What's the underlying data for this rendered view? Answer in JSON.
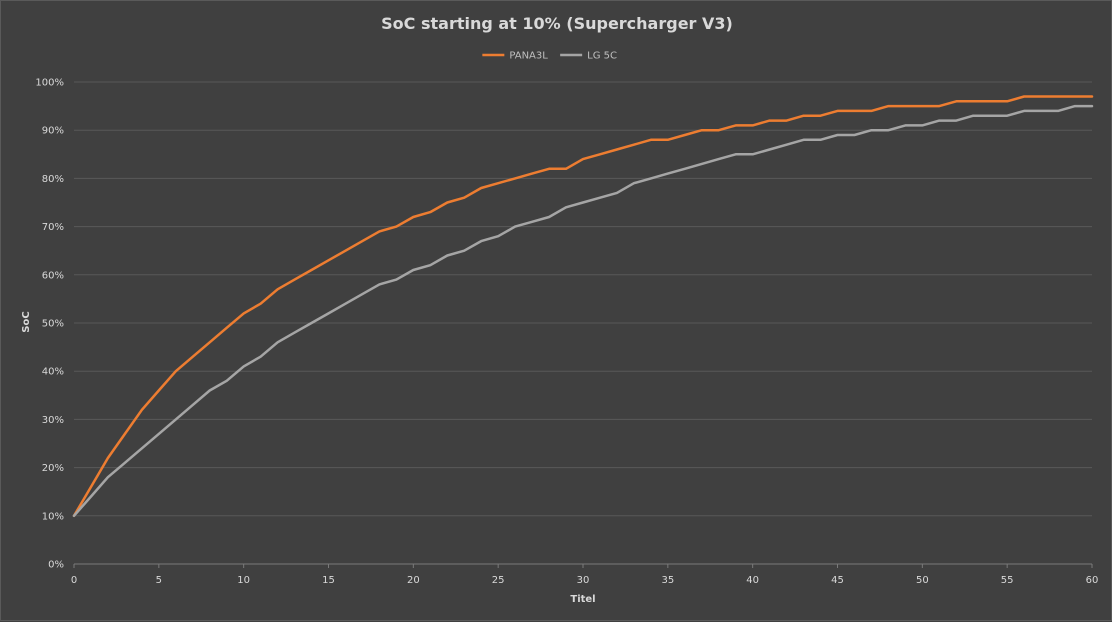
{
  "chart_data": {
    "type": "line",
    "title": "SoC starting at 10% (Supercharger V3)",
    "xlabel": "Titel",
    "ylabel": "SoC",
    "xlim": [
      0,
      60
    ],
    "ylim": [
      0,
      100
    ],
    "x_ticks": [
      "0",
      "5",
      "10",
      "15",
      "20",
      "25",
      "30",
      "35",
      "40",
      "45",
      "50",
      "55",
      "60"
    ],
    "y_ticks": [
      "0%",
      "10%",
      "20%",
      "30%",
      "40%",
      "50%",
      "60%",
      "70%",
      "80%",
      "90%",
      "100%"
    ],
    "grid": true,
    "legend_position": "top-center",
    "x": [
      0,
      1,
      2,
      3,
      4,
      5,
      6,
      7,
      8,
      9,
      10,
      11,
      12,
      13,
      14,
      15,
      16,
      17,
      18,
      19,
      20,
      21,
      22,
      23,
      24,
      25,
      26,
      27,
      28,
      29,
      30,
      31,
      32,
      33,
      34,
      35,
      36,
      37,
      38,
      39,
      40,
      41,
      42,
      43,
      44,
      45,
      46,
      47,
      48,
      49,
      50,
      51,
      52,
      53,
      54,
      55,
      56,
      57,
      58,
      59,
      60
    ],
    "series": [
      {
        "name": "PANA3L",
        "color": "#ed7d31",
        "values": [
          10,
          16,
          22,
          27,
          32,
          36,
          40,
          43,
          46,
          49,
          52,
          54,
          57,
          59,
          61,
          63,
          65,
          67,
          69,
          70,
          72,
          73,
          75,
          76,
          78,
          79,
          80,
          81,
          82,
          82,
          84,
          85,
          86,
          87,
          88,
          88,
          89,
          90,
          90,
          91,
          91,
          92,
          92,
          93,
          93,
          94,
          94,
          94,
          95,
          95,
          95,
          95,
          96,
          96,
          96,
          96,
          97,
          97,
          97,
          97,
          97
        ]
      },
      {
        "name": "LG 5C",
        "color": "#a5a5a5",
        "values": [
          10,
          14,
          18,
          21,
          24,
          27,
          30,
          33,
          36,
          38,
          41,
          43,
          46,
          48,
          50,
          52,
          54,
          56,
          58,
          59,
          61,
          62,
          64,
          65,
          67,
          68,
          70,
          71,
          72,
          74,
          75,
          76,
          77,
          79,
          80,
          81,
          82,
          83,
          84,
          85,
          85,
          86,
          87,
          88,
          88,
          89,
          89,
          90,
          90,
          91,
          91,
          92,
          92,
          93,
          93,
          93,
          94,
          94,
          94,
          95,
          95
        ]
      }
    ]
  }
}
